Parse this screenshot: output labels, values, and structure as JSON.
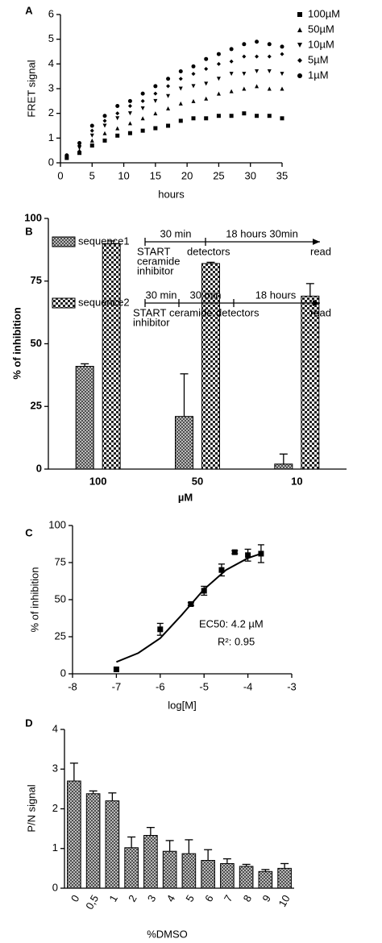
{
  "chart_data": [
    {
      "type": "scatter",
      "panel": "A",
      "xlabel": "hours",
      "ylabel": "FRET signal",
      "x": [
        1,
        3,
        5,
        7,
        9,
        11,
        13,
        15,
        17,
        19,
        21,
        23,
        25,
        27,
        29,
        31,
        33,
        35
      ],
      "series": [
        {
          "name": "100µM",
          "color": "#000000",
          "marker": "square",
          "values": [
            0.2,
            0.4,
            0.7,
            0.9,
            1.1,
            1.2,
            1.3,
            1.4,
            1.5,
            1.7,
            1.8,
            1.8,
            1.9,
            1.9,
            2.0,
            1.9,
            1.9,
            1.8
          ]
        },
        {
          "name": "50µM",
          "color": "#000000",
          "marker": "triangle",
          "values": [
            0.2,
            0.5,
            0.9,
            1.2,
            1.4,
            1.6,
            1.8,
            2.0,
            2.2,
            2.4,
            2.5,
            2.6,
            2.8,
            2.9,
            3.0,
            3.1,
            3.0,
            3.0
          ]
        },
        {
          "name": "10µM",
          "color": "#000000",
          "marker": "triangle-down",
          "values": [
            0.2,
            0.6,
            1.1,
            1.5,
            1.8,
            2.0,
            2.2,
            2.5,
            2.7,
            3.0,
            3.1,
            3.2,
            3.4,
            3.6,
            3.6,
            3.7,
            3.7,
            3.6
          ]
        },
        {
          "name": "5µM",
          "color": "#000000",
          "marker": "diamond",
          "values": [
            0.3,
            0.7,
            1.3,
            1.7,
            2.0,
            2.3,
            2.5,
            2.8,
            3.1,
            3.4,
            3.6,
            3.8,
            4.0,
            4.1,
            4.3,
            4.3,
            4.3,
            4.4
          ]
        },
        {
          "name": "1µM",
          "color": "#000000",
          "marker": "circle",
          "values": [
            0.3,
            0.8,
            1.5,
            1.9,
            2.3,
            2.5,
            2.8,
            3.1,
            3.4,
            3.7,
            3.9,
            4.2,
            4.4,
            4.6,
            4.8,
            4.9,
            4.8,
            4.7
          ]
        }
      ],
      "xlim": [
        0,
        35
      ],
      "xticks": [
        0,
        5,
        10,
        15,
        20,
        25,
        30,
        35
      ],
      "ylim": [
        0,
        6
      ],
      "yticks": [
        0,
        1,
        2,
        3,
        4,
        5,
        6
      ],
      "legend": "right"
    },
    {
      "type": "bar",
      "panel": "B",
      "xlabel": "µM",
      "ylabel": "% of inhibition",
      "categories": [
        "100",
        "50",
        "10"
      ],
      "series": [
        {
          "name": "sequence1",
          "values": [
            41,
            21,
            2
          ],
          "errors": [
            1,
            17,
            4
          ]
        },
        {
          "name": "sequence2",
          "values": [
            90,
            82,
            69
          ],
          "errors": [
            1,
            0.5,
            5
          ]
        }
      ],
      "ylim": [
        0,
        100
      ],
      "yticks": [
        0,
        25,
        50,
        75,
        100
      ],
      "timelines": [
        {
          "above": [
            "30 min",
            "18 hours 30min"
          ],
          "below": [
            [
              "START",
              "ceramide",
              "inhibitor"
            ],
            [
              "detectors"
            ],
            [
              "read"
            ]
          ]
        },
        {
          "above": [
            "30 min",
            "30 min",
            "18 hours"
          ],
          "below": [
            [
              "START",
              "inhibitor"
            ],
            [
              "ceramide"
            ],
            [
              "detectors"
            ],
            [
              "read"
            ]
          ]
        }
      ]
    },
    {
      "type": "scatter",
      "panel": "C",
      "xlabel": "log[M]",
      "ylabel": "% of inhibition",
      "x": [
        -7,
        -6,
        -5.3,
        -5,
        -4.6,
        -4.3,
        -4,
        -3.7
      ],
      "series": [
        {
          "color": "#000000",
          "marker": "square",
          "values": [
            3,
            30,
            47,
            56,
            70,
            82,
            80,
            81
          ],
          "errors": [
            0,
            4,
            1,
            3,
            4,
            1,
            4,
            6
          ]
        }
      ],
      "fit": {
        "x": [
          -7,
          -6.5,
          -6,
          -5.5,
          -5,
          -4.5,
          -4,
          -3.7
        ],
        "values": [
          8,
          14,
          24,
          40,
          57,
          70,
          78,
          81
        ]
      },
      "annotations": [
        "EC50: 4.2 µM",
        "R²: 0.95"
      ],
      "xlim": [
        -8,
        -3
      ],
      "xticks": [
        -8,
        -7,
        -6,
        -5,
        -4,
        -3
      ],
      "ylim": [
        0,
        100
      ],
      "yticks": [
        0,
        25,
        50,
        75,
        100
      ]
    },
    {
      "type": "bar",
      "panel": "D",
      "xlabel": "%DMSO",
      "ylabel": "P/N signal",
      "categories": [
        "0",
        "0,5",
        "1",
        "2",
        "3",
        "4",
        "5",
        "6",
        "7",
        "8",
        "9",
        "10"
      ],
      "series": [
        {
          "values": [
            2.7,
            2.38,
            2.2,
            1.02,
            1.33,
            0.93,
            0.87,
            0.7,
            0.62,
            0.55,
            0.42,
            0.5
          ],
          "errors": [
            0.45,
            0.07,
            0.2,
            0.27,
            0.2,
            0.27,
            0.35,
            0.27,
            0.12,
            0.05,
            0.05,
            0.12
          ]
        }
      ],
      "ylim": [
        0,
        4
      ],
      "yticks": [
        0,
        1,
        2,
        3,
        4
      ]
    }
  ]
}
